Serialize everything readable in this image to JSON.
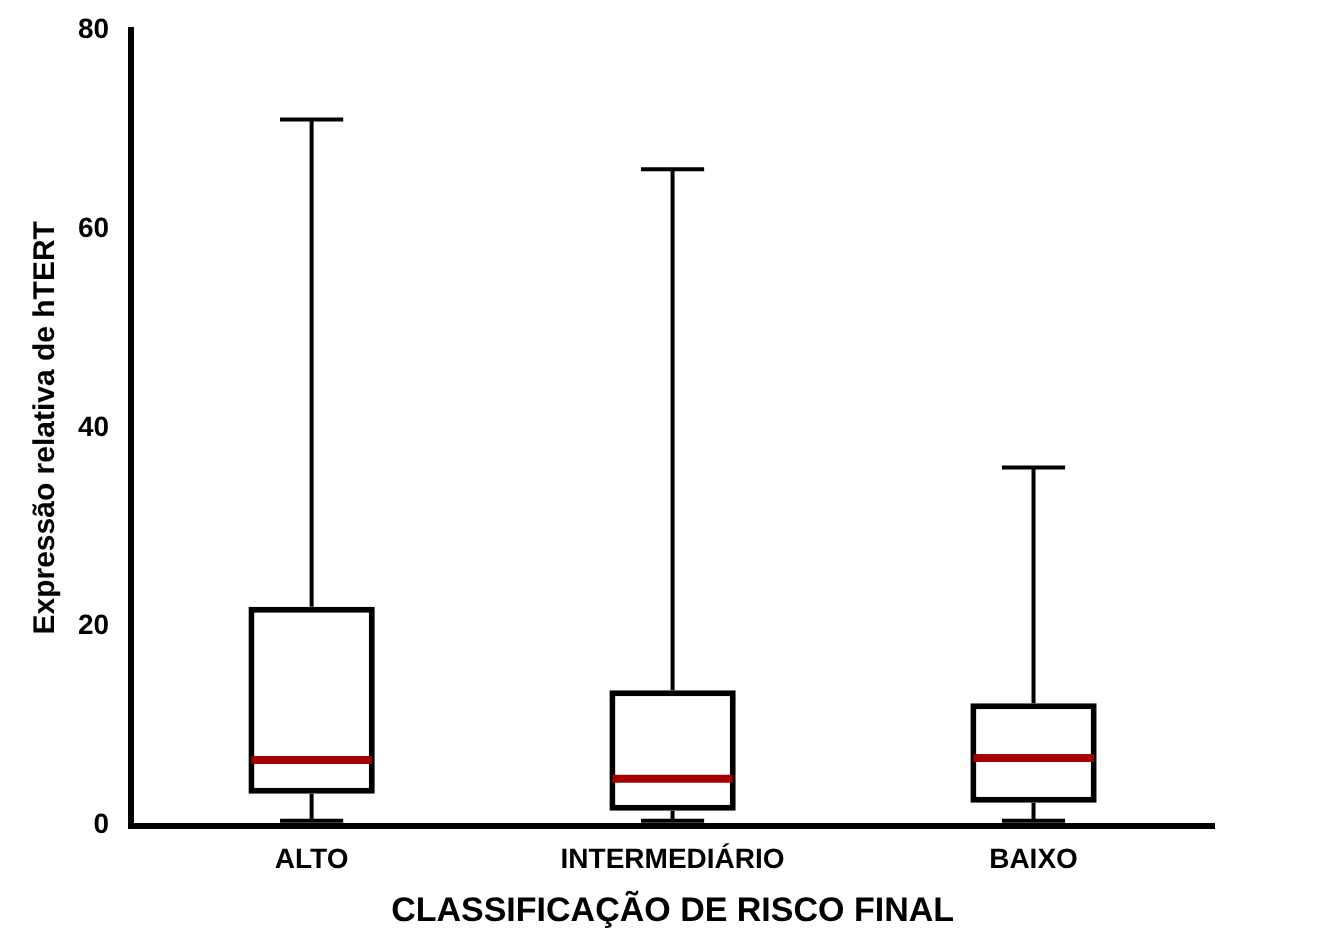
{
  "chart_data": {
    "type": "box",
    "xlabel": "CLASSIFICAÇÃO DE RISCO FINAL",
    "ylabel": "Expressão relativa de hTERT",
    "categories": [
      "ALTO",
      "INTERMEDIÁRIO",
      "BAIXO"
    ],
    "boxes": [
      {
        "low": 0.5,
        "q1": 3.2,
        "median": 6.6,
        "q3": 22,
        "high": 71
      },
      {
        "low": 0.5,
        "q1": 1.5,
        "median": 4.7,
        "q3": 13.6,
        "high": 66
      },
      {
        "low": 0.5,
        "q1": 2.3,
        "median": 6.8,
        "q3": 12.3,
        "high": 36
      }
    ],
    "color": "#000000",
    "ylim": [
      0,
      80
    ],
    "yticks": [
      0,
      20,
      40,
      60,
      80
    ],
    "grid": false,
    "legend": false
  }
}
